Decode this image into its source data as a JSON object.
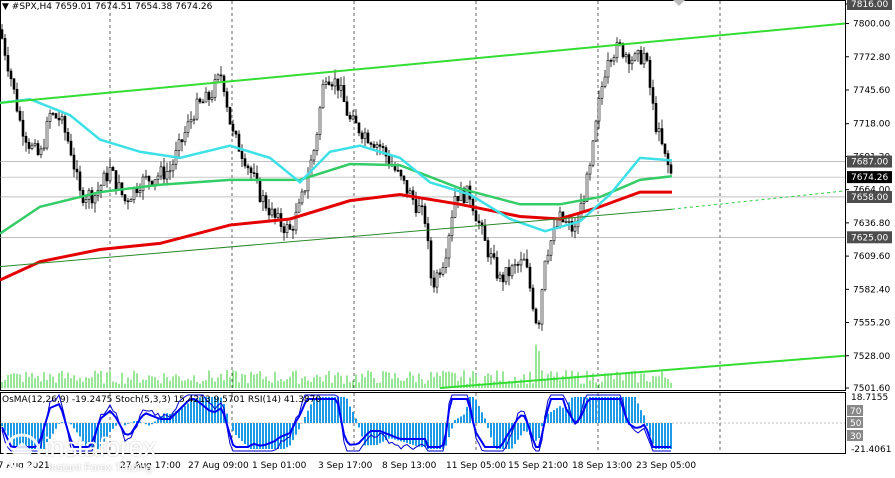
{
  "header": {
    "symbol": "#SPX,H4",
    "ohlc": "7659.01 7674.51 7654.38 7674.26"
  },
  "indicators_label": "OsMA(12,26,9) -19.2475  Stoch(5,3,3) 15.4213 9.5701  RSI(14) 41.3870",
  "price_axis": [
    "7816.00",
    "7800.00",
    "7772.80",
    "7745.60",
    "7718.00",
    "7691.20",
    "7664.00",
    "7636.80",
    "7609.60",
    "7582.40",
    "7555.20",
    "7528.00",
    "7501.60"
  ],
  "price_tags": [
    {
      "label": "7687.00",
      "value": 7687,
      "color": "#4d4d4d"
    },
    {
      "label": "7674.26",
      "value": 7674.26,
      "color": "#000000"
    },
    {
      "label": "7658.00",
      "value": 7658,
      "color": "#4d4d4d"
    },
    {
      "label": "7625.00",
      "value": 7625,
      "color": "#4d4d4d"
    }
  ],
  "indicator_axis": [
    "18.7155",
    "70",
    "50",
    "30",
    "-21.4061"
  ],
  "time_axis": [
    "17 Aug 2021",
    "27 Aug 17:00",
    "27 Aug 09:00",
    "1 Sep 01:00",
    "3 Sep 17:00",
    "8 Sep 13:00",
    "11 Sep 05:00",
    "15 Sep 21:00",
    "18 Sep 13:00",
    "23 Sep 05:00"
  ],
  "watermark": {
    "name": "instaforex",
    "tagline": "Instant Forex Trading"
  },
  "colors": {
    "up": "#000000",
    "down": "#000000",
    "ma_red": "#e50000",
    "ma_cyan": "#3ee0e8",
    "ma_green": "#33cc66",
    "channel": "#33dd33",
    "volume": "#33cc33",
    "osma": "#1e9be8",
    "stoch": "#0000cc",
    "rsi": "#0000ff"
  }
}
